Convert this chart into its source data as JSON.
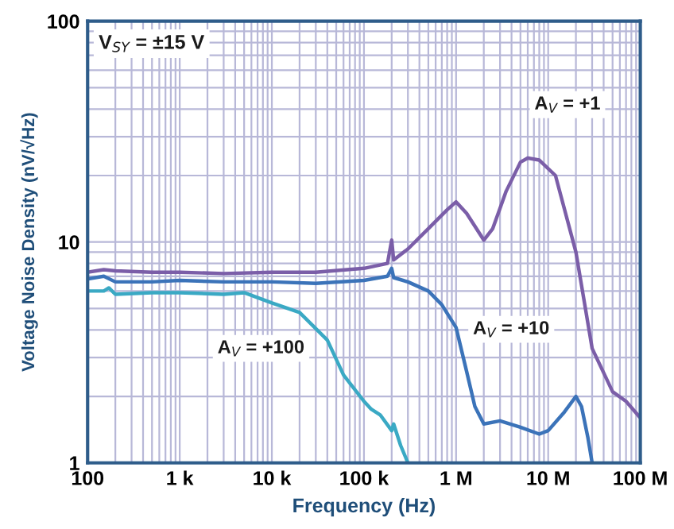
{
  "chart_data": {
    "type": "line",
    "xlabel": "Frequency (Hz)",
    "ylabel": "Voltage Noise Density (nV/√Hz)",
    "log": "xy",
    "xlim": [
      100,
      100000000
    ],
    "ylim": [
      1,
      100
    ],
    "xticks": [
      {
        "value": 100,
        "label": "100"
      },
      {
        "value": 1000,
        "label": "1 k"
      },
      {
        "value": 10000,
        "label": "10 k"
      },
      {
        "value": 100000,
        "label": "100 k"
      },
      {
        "value": 1000000,
        "label": "1 M"
      },
      {
        "value": 10000000,
        "label": "10 M"
      },
      {
        "value": 100000000,
        "label": "100 M"
      }
    ],
    "yticks": [
      1,
      10,
      100
    ],
    "grid": true,
    "legend": false,
    "line_style": "solid",
    "marker": "none",
    "annotations": [
      "V$_{SY}$ = ±15 V"
    ],
    "series": [
      {
        "name": "A$_{V}$ = +1",
        "color": "#7b5ea8",
        "x": [
          100,
          150,
          200,
          500,
          1000,
          3000,
          10000,
          30000,
          100000,
          180000,
          200000,
          210000,
          300000,
          500000,
          800000,
          1000000,
          1300000,
          2000000,
          2500000,
          3500000,
          5000000,
          6000000,
          8000000,
          12000000,
          20000000,
          30000000,
          50000000,
          70000000,
          100000000
        ],
        "values": [
          7.3,
          7.5,
          7.4,
          7.3,
          7.3,
          7.2,
          7.3,
          7.3,
          7.6,
          8.0,
          10.2,
          8.3,
          9.3,
          11.5,
          14,
          15.2,
          13.5,
          10.2,
          11.5,
          17,
          23,
          24,
          23.5,
          20,
          9,
          3.3,
          2.1,
          1.9,
          1.6
        ]
      },
      {
        "name": "A$_{V}$ = +10",
        "color": "#3b73b9",
        "x": [
          100,
          150,
          200,
          500,
          1000,
          3000,
          10000,
          30000,
          100000,
          180000,
          200000,
          210000,
          300000,
          500000,
          700000,
          1000000,
          1300000,
          1600000,
          2000000,
          3000000,
          5000000,
          8000000,
          10000000,
          15000000,
          20000000,
          23000000,
          27000000,
          30000000
        ],
        "values": [
          6.8,
          7.0,
          6.6,
          6.6,
          6.7,
          6.6,
          6.6,
          6.5,
          6.7,
          7.0,
          7.6,
          6.9,
          6.6,
          6.0,
          5.2,
          4.1,
          2.6,
          1.8,
          1.5,
          1.55,
          1.45,
          1.35,
          1.4,
          1.7,
          2.0,
          1.8,
          1.3,
          1.0
        ]
      },
      {
        "name": "A$_{V}$ = +100",
        "color": "#3aa9c4",
        "x": [
          100,
          150,
          170,
          200,
          500,
          1000,
          3000,
          5000,
          10000,
          20000,
          40000,
          60000,
          100000,
          120000,
          150000,
          200000,
          210000,
          250000,
          300000
        ],
        "values": [
          6.0,
          6.0,
          6.2,
          5.8,
          5.9,
          5.9,
          5.8,
          5.9,
          5.3,
          4.8,
          3.6,
          2.5,
          1.9,
          1.75,
          1.65,
          1.4,
          1.5,
          1.2,
          1.0
        ]
      }
    ]
  }
}
